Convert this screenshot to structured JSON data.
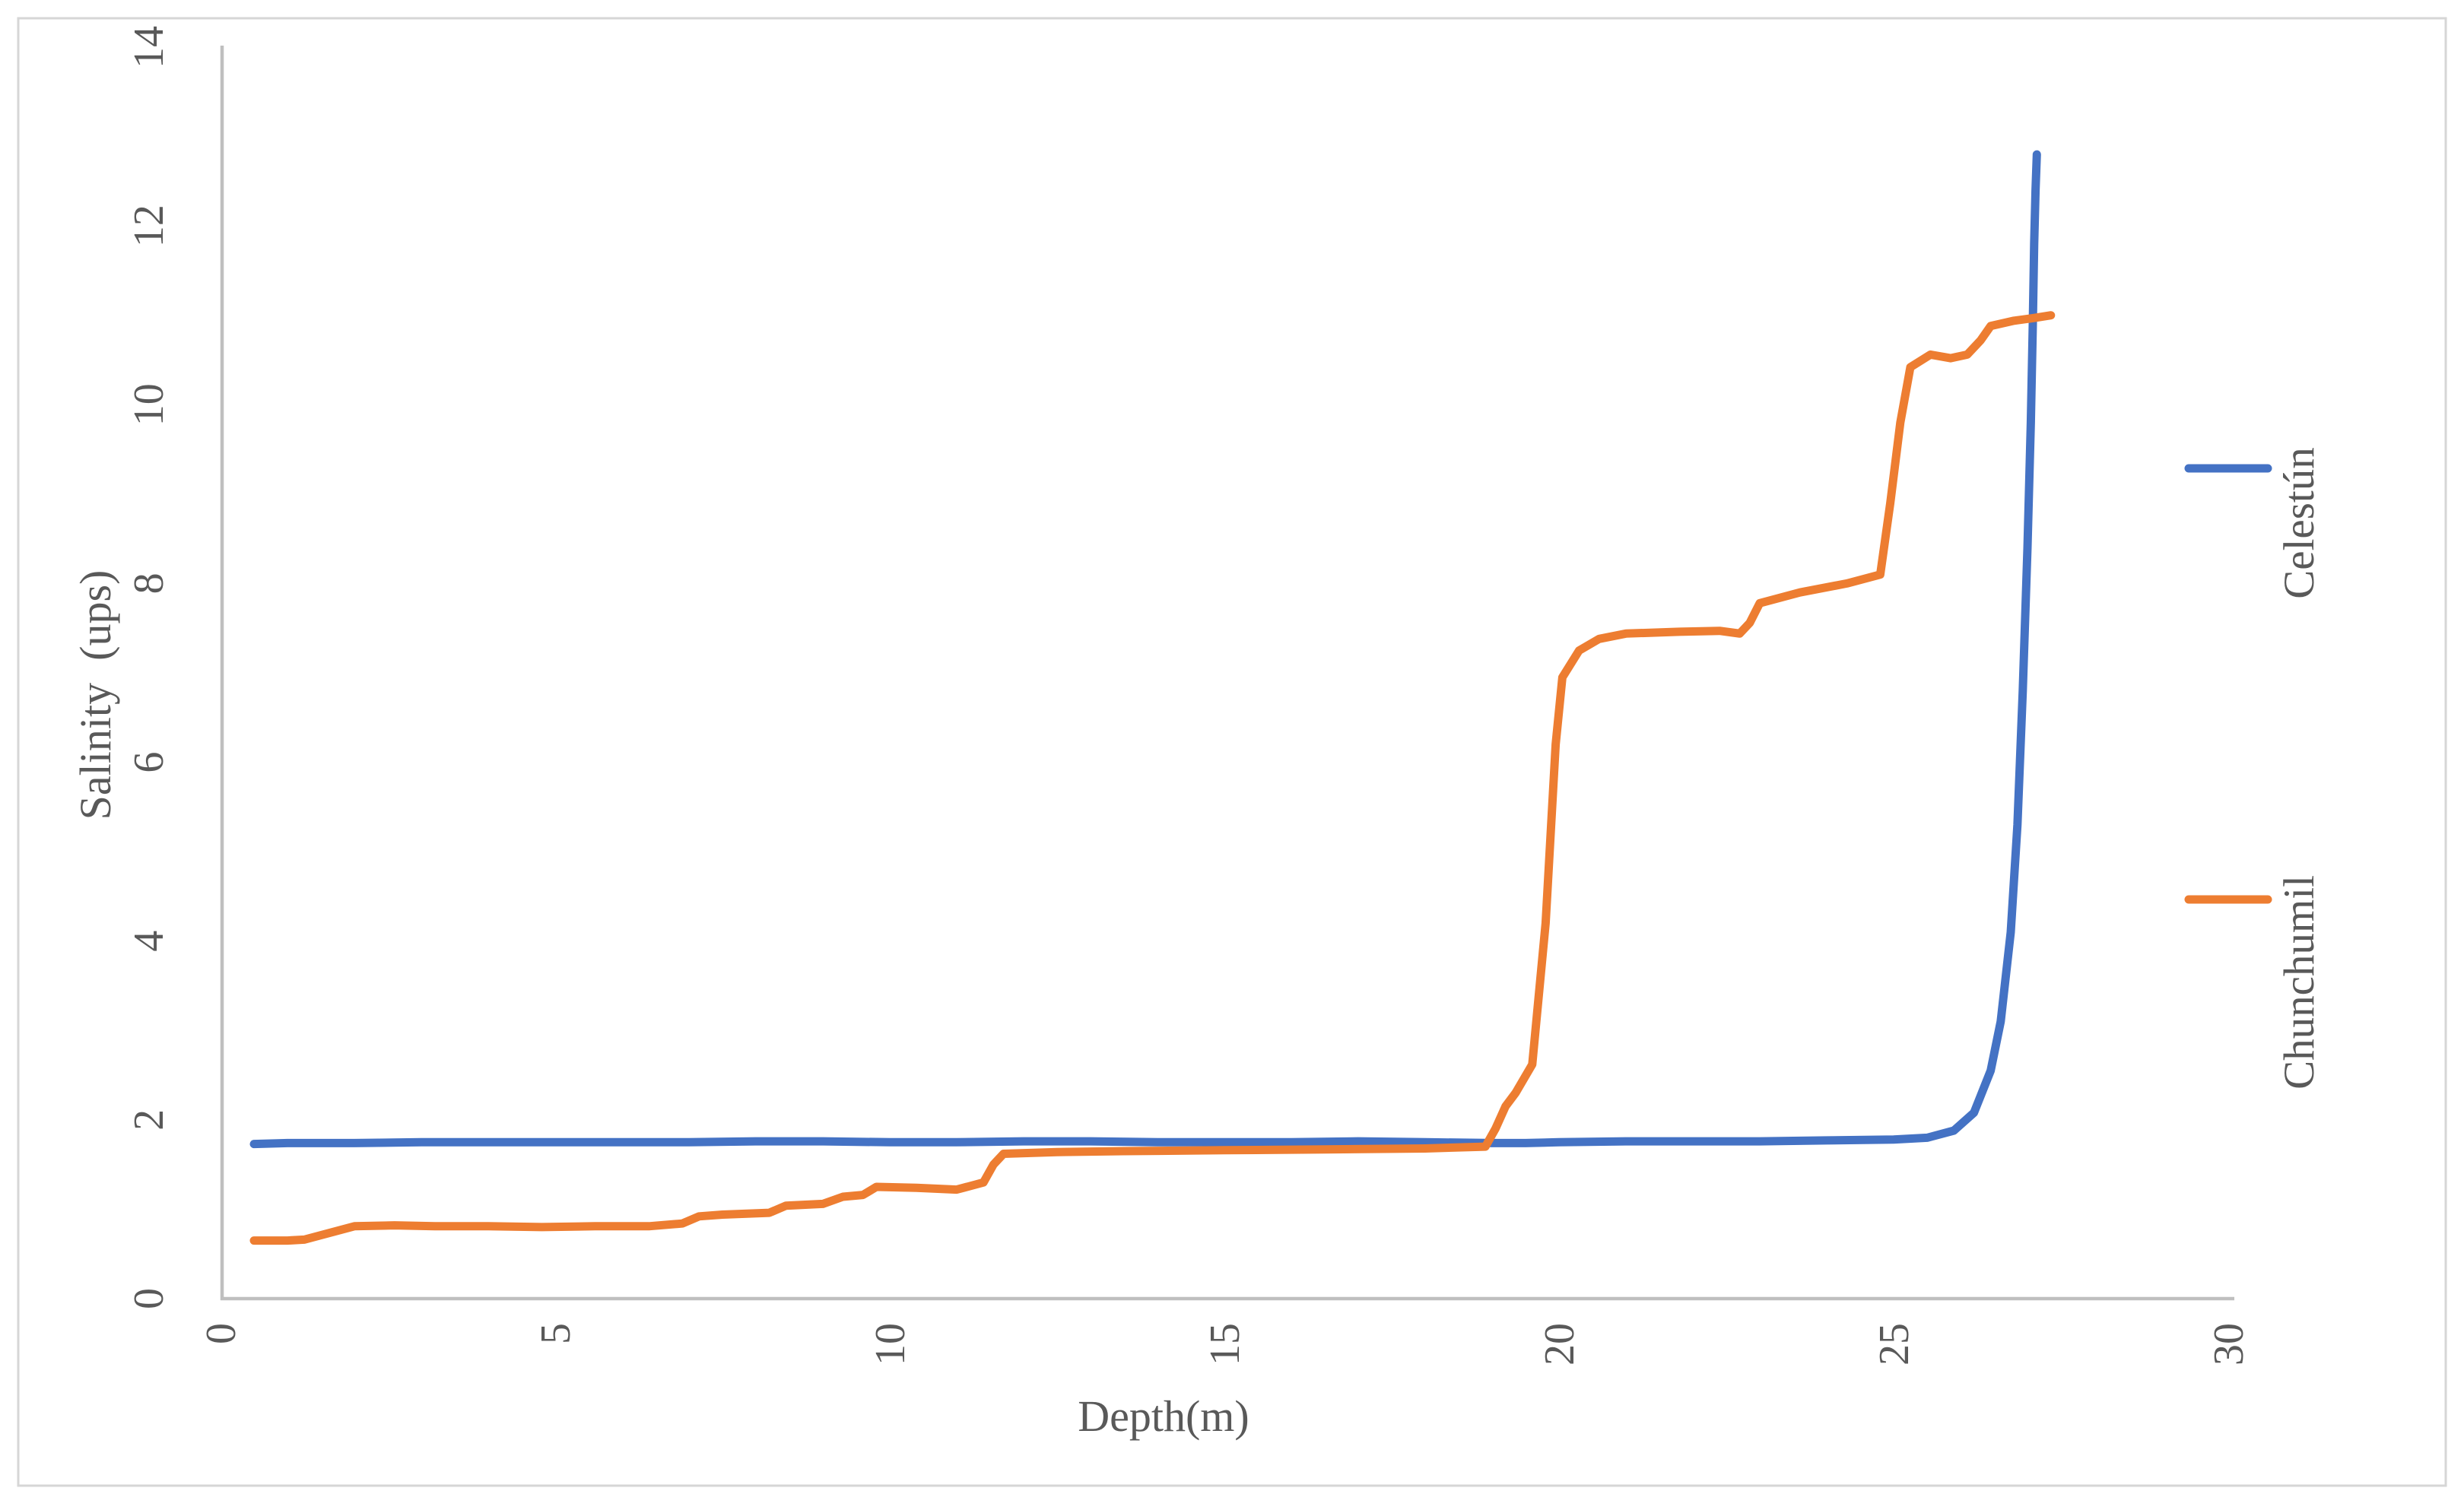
{
  "figure": {
    "background_color": "#ffffff",
    "frame_color": "#d6d6d6",
    "axis_line_color": "#bfbfbf",
    "text_color": "#595959"
  },
  "chart_data": {
    "type": "line",
    "title": "",
    "xlabel": "Depth(m)",
    "ylabel": "Salinity  (ups)",
    "xlim": [
      0,
      30
    ],
    "ylim": [
      0,
      14
    ],
    "x_ticks": [
      "0",
      "5",
      "10",
      "15",
      "20",
      "25",
      "30"
    ],
    "y_ticks": [
      "0",
      "2",
      "4",
      "6",
      "8",
      "10",
      "12",
      "14"
    ],
    "grid": false,
    "legend_position": "right",
    "tick_label_rotation_deg": -90,
    "series": [
      {
        "name": "Celestún",
        "color": "#4472C4",
        "points": [
          [
            0.5,
            1.73
          ],
          [
            1,
            1.74
          ],
          [
            2,
            1.74
          ],
          [
            3,
            1.75
          ],
          [
            4,
            1.75
          ],
          [
            5,
            1.75
          ],
          [
            6,
            1.75
          ],
          [
            7,
            1.75
          ],
          [
            8,
            1.76
          ],
          [
            9,
            1.76
          ],
          [
            10,
            1.75
          ],
          [
            11,
            1.75
          ],
          [
            12,
            1.76
          ],
          [
            13,
            1.76
          ],
          [
            14,
            1.75
          ],
          [
            15,
            1.75
          ],
          [
            16,
            1.75
          ],
          [
            17,
            1.76
          ],
          [
            18,
            1.75
          ],
          [
            19,
            1.74
          ],
          [
            19.5,
            1.74
          ],
          [
            20,
            1.75
          ],
          [
            21,
            1.76
          ],
          [
            22,
            1.76
          ],
          [
            23,
            1.76
          ],
          [
            24,
            1.77
          ],
          [
            25,
            1.78
          ],
          [
            25.5,
            1.8
          ],
          [
            25.9,
            1.88
          ],
          [
            26.2,
            2.08
          ],
          [
            26.45,
            2.55
          ],
          [
            26.6,
            3.1
          ],
          [
            26.75,
            4.1
          ],
          [
            26.85,
            5.3
          ],
          [
            26.93,
            6.8
          ],
          [
            27.0,
            8.4
          ],
          [
            27.05,
            9.8
          ],
          [
            27.08,
            10.9
          ],
          [
            27.1,
            11.8
          ],
          [
            27.12,
            12.4
          ],
          [
            27.14,
            12.8
          ]
        ]
      },
      {
        "name": "Chunchumil",
        "color": "#ED7D31",
        "points": [
          [
            0.5,
            0.65
          ],
          [
            1.0,
            0.65
          ],
          [
            1.25,
            0.66
          ],
          [
            2.0,
            0.81
          ],
          [
            2.6,
            0.82
          ],
          [
            3.2,
            0.81
          ],
          [
            4.0,
            0.81
          ],
          [
            4.8,
            0.8
          ],
          [
            5.6,
            0.81
          ],
          [
            6.4,
            0.81
          ],
          [
            6.9,
            0.84
          ],
          [
            7.15,
            0.92
          ],
          [
            7.5,
            0.94
          ],
          [
            8.2,
            0.96
          ],
          [
            8.45,
            1.04
          ],
          [
            9.0,
            1.06
          ],
          [
            9.3,
            1.14
          ],
          [
            9.6,
            1.16
          ],
          [
            9.8,
            1.25
          ],
          [
            10.4,
            1.24
          ],
          [
            11.0,
            1.22
          ],
          [
            11.4,
            1.3
          ],
          [
            11.55,
            1.5
          ],
          [
            11.7,
            1.62
          ],
          [
            12.5,
            1.64
          ],
          [
            13.5,
            1.65
          ],
          [
            15,
            1.66
          ],
          [
            16.5,
            1.67
          ],
          [
            18,
            1.68
          ],
          [
            18.9,
            1.7
          ],
          [
            19.05,
            1.9
          ],
          [
            19.2,
            2.15
          ],
          [
            19.35,
            2.3
          ],
          [
            19.6,
            2.62
          ],
          [
            19.8,
            4.2
          ],
          [
            19.95,
            6.2
          ],
          [
            20.05,
            6.95
          ],
          [
            20.3,
            7.25
          ],
          [
            20.6,
            7.38
          ],
          [
            21.0,
            7.44
          ],
          [
            21.8,
            7.46
          ],
          [
            22.4,
            7.47
          ],
          [
            22.7,
            7.44
          ],
          [
            22.85,
            7.56
          ],
          [
            23.0,
            7.78
          ],
          [
            23.6,
            7.9
          ],
          [
            24.3,
            8.0
          ],
          [
            24.8,
            8.1
          ],
          [
            24.95,
            8.9
          ],
          [
            25.1,
            9.8
          ],
          [
            25.25,
            10.42
          ],
          [
            25.55,
            10.56
          ],
          [
            25.85,
            10.52
          ],
          [
            26.1,
            10.56
          ],
          [
            26.3,
            10.72
          ],
          [
            26.45,
            10.88
          ],
          [
            26.8,
            10.94
          ],
          [
            27.1,
            10.97
          ],
          [
            27.35,
            11.0
          ]
        ]
      }
    ]
  }
}
